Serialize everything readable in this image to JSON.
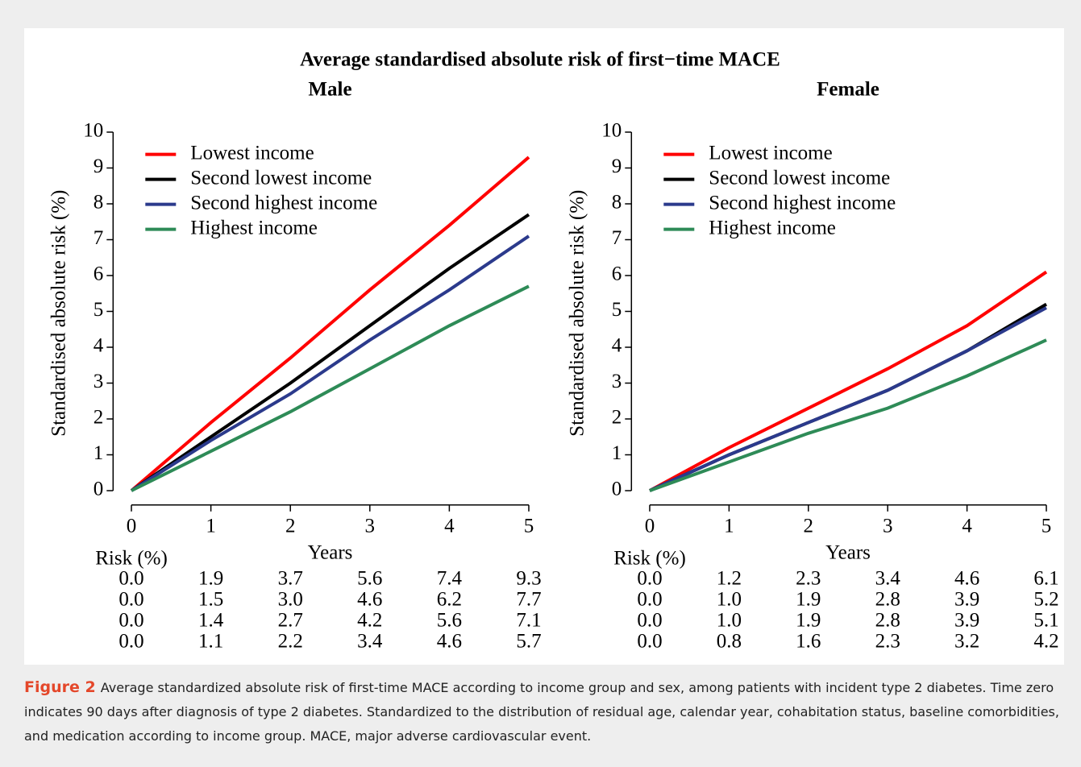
{
  "title": "Average standardised absolute risk of first−time MACE",
  "chart_data": [
    {
      "type": "line",
      "title": "Male",
      "xlabel": "Years",
      "ylabel": "Standardised absolute risk (%)",
      "table_label": "Risk (%)",
      "x": [
        0,
        1,
        2,
        3,
        4,
        5
      ],
      "xlim": [
        -0.2,
        5.2
      ],
      "ylim": [
        -0.4,
        10.3
      ],
      "xticks": [
        0,
        1,
        2,
        3,
        4,
        5
      ],
      "yticks": [
        0,
        1,
        2,
        3,
        4,
        5,
        6,
        7,
        8,
        9,
        10
      ],
      "legend": "upper left",
      "series": [
        {
          "name": "Lowest income",
          "color": "#ff0000",
          "values": [
            0,
            1.9,
            3.7,
            5.6,
            7.4,
            9.3
          ],
          "value_labels": [
            "0.0",
            "1.9",
            "3.7",
            "5.6",
            "7.4",
            "9.3"
          ]
        },
        {
          "name": "Second lowest income",
          "color": "#000000",
          "values": [
            0,
            1.5,
            3.0,
            4.6,
            6.2,
            7.7
          ],
          "value_labels": [
            "0.0",
            "1.5",
            "3.0",
            "4.6",
            "6.2",
            "7.7"
          ]
        },
        {
          "name": "Second highest income",
          "color": "#2b3a8c",
          "values": [
            0,
            1.4,
            2.7,
            4.2,
            5.6,
            7.1
          ],
          "value_labels": [
            "0.0",
            "1.4",
            "2.7",
            "4.2",
            "5.6",
            "7.1"
          ]
        },
        {
          "name": "Highest income",
          "color": "#2e8b57",
          "values": [
            0,
            1.1,
            2.2,
            3.4,
            4.6,
            5.7
          ],
          "value_labels": [
            "0.0",
            "1.1",
            "2.2",
            "3.4",
            "4.6",
            "5.7"
          ]
        }
      ]
    },
    {
      "type": "line",
      "title": "Female",
      "xlabel": "Years",
      "ylabel": "Standardised absolute risk (%)",
      "table_label": "Risk (%)",
      "x": [
        0,
        1,
        2,
        3,
        4,
        5
      ],
      "xlim": [
        -0.2,
        5.2
      ],
      "ylim": [
        -0.4,
        10.3
      ],
      "xticks": [
        0,
        1,
        2,
        3,
        4,
        5
      ],
      "yticks": [
        0,
        1,
        2,
        3,
        4,
        5,
        6,
        7,
        8,
        9,
        10
      ],
      "legend": "upper left",
      "series": [
        {
          "name": "Lowest income",
          "color": "#ff0000",
          "values": [
            0,
            1.2,
            2.3,
            3.4,
            4.6,
            6.1
          ],
          "value_labels": [
            "0.0",
            "1.2",
            "2.3",
            "3.4",
            "4.6",
            "6.1"
          ]
        },
        {
          "name": "Second lowest income",
          "color": "#000000",
          "values": [
            0,
            1.0,
            1.9,
            2.8,
            3.9,
            5.2
          ],
          "value_labels": [
            "0.0",
            "1.0",
            "1.9",
            "2.8",
            "3.9",
            "5.2"
          ]
        },
        {
          "name": "Second highest income",
          "color": "#2b3a8c",
          "values": [
            0,
            1.0,
            1.9,
            2.8,
            3.9,
            5.1
          ],
          "value_labels": [
            "0.0",
            "1.0",
            "1.9",
            "2.8",
            "3.9",
            "5.1"
          ]
        },
        {
          "name": "Highest income",
          "color": "#2e8b57",
          "values": [
            0,
            0.8,
            1.6,
            2.3,
            3.2,
            4.2
          ],
          "value_labels": [
            "0.0",
            "0.8",
            "1.6",
            "2.3",
            "3.2",
            "4.2"
          ]
        }
      ]
    }
  ],
  "caption": {
    "label": "Figure 2",
    "text": "Average standardized absolute risk of first-time MACE according to income group and sex, among patients with incident type 2 diabetes. Time zero indicates 90 days after diagnosis of type 2 diabetes. Standardized to the distribution of residual age, calendar year, cohabitation status, baseline comorbidities, and medication according to income group. MACE, major adverse cardiovascular event."
  }
}
